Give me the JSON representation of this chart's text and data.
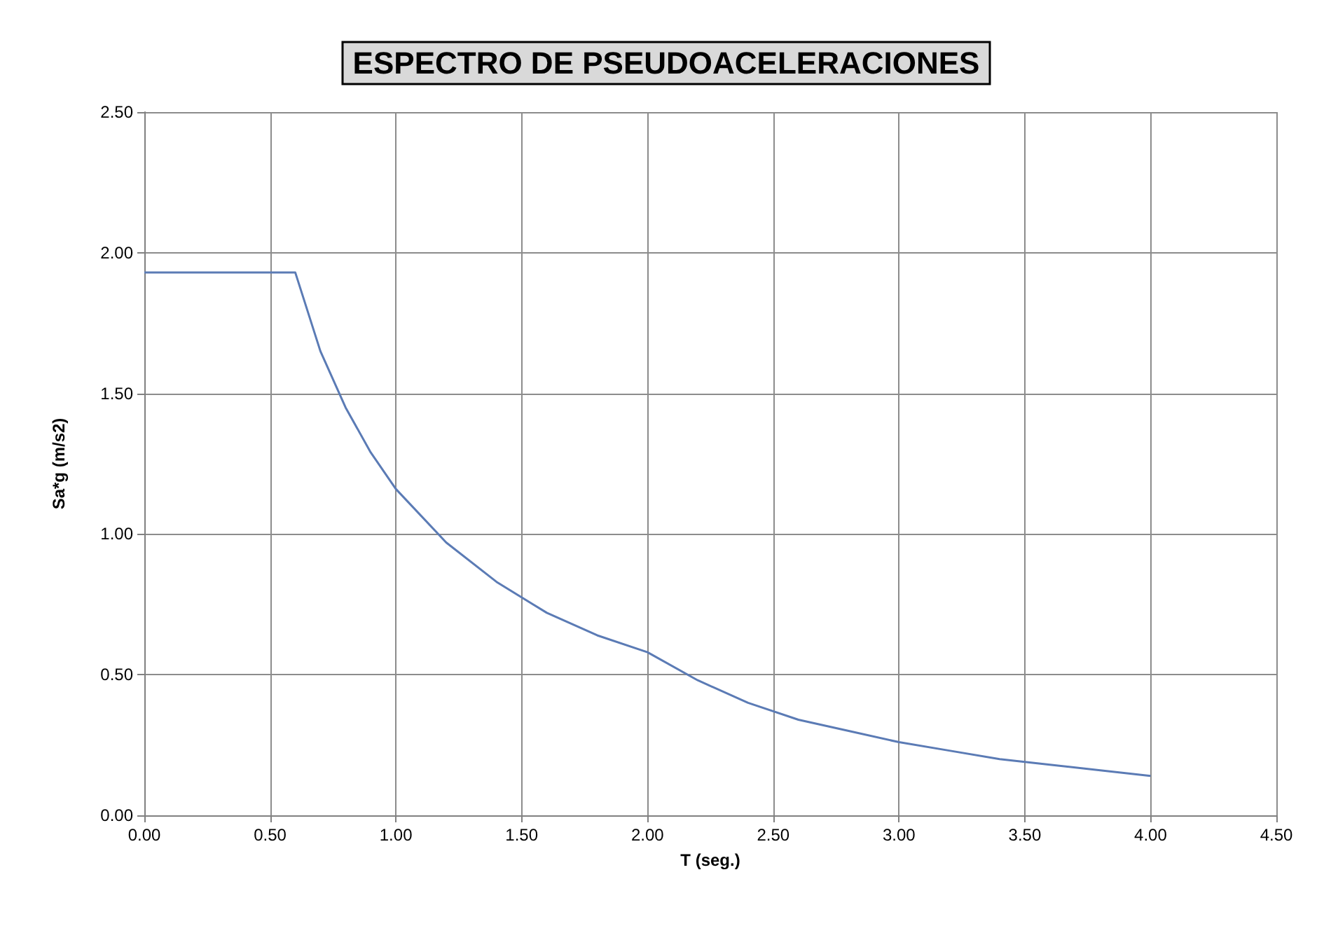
{
  "chart_data": {
    "type": "line",
    "title": "ESPECTRO DE PSEUDOACELERACIONES",
    "xlabel": "T (seg.)",
    "ylabel": "Sa*g (m/s2)",
    "x": [
      0,
      0.6,
      0.7,
      0.8,
      0.9,
      1.0,
      1.2,
      1.4,
      1.6,
      1.8,
      2.0,
      2.2,
      2.4,
      2.6,
      2.8,
      3.0,
      3.2,
      3.4,
      3.6,
      3.8,
      4.0
    ],
    "series": [
      {
        "color": "#5b7bb5",
        "values": [
          1.93,
          1.93,
          1.65,
          1.45,
          1.29,
          1.16,
          0.97,
          0.83,
          0.72,
          0.64,
          0.58,
          0.48,
          0.4,
          0.34,
          0.3,
          0.26,
          0.23,
          0.2,
          0.18,
          0.16,
          0.14
        ]
      }
    ],
    "xlim": [
      0,
      4.5
    ],
    "xticks": [
      {
        "value": 0,
        "label": "0.00"
      },
      {
        "value": 0.5,
        "label": "0.50"
      },
      {
        "value": 1,
        "label": "1.00"
      },
      {
        "value": 1.5,
        "label": "1.50"
      },
      {
        "value": 2,
        "label": "2.00"
      },
      {
        "value": 2.5,
        "label": "2.50"
      },
      {
        "value": 3,
        "label": "3.00"
      },
      {
        "value": 3.5,
        "label": "3.50"
      },
      {
        "value": 4,
        "label": "4.00"
      },
      {
        "value": 4.5,
        "label": "4.50"
      }
    ],
    "ylim": [
      0,
      2.5
    ],
    "yticks": [
      {
        "value": 0,
        "label": "0.00"
      },
      {
        "value": 0.5,
        "label": "0.50"
      },
      {
        "value": 1,
        "label": "1.00"
      },
      {
        "value": 1.5,
        "label": "1.50"
      },
      {
        "value": 2,
        "label": "2.00"
      },
      {
        "value": 2.5,
        "label": "2.50"
      }
    ],
    "grid": true,
    "marker": "none",
    "line_style": "solid"
  }
}
